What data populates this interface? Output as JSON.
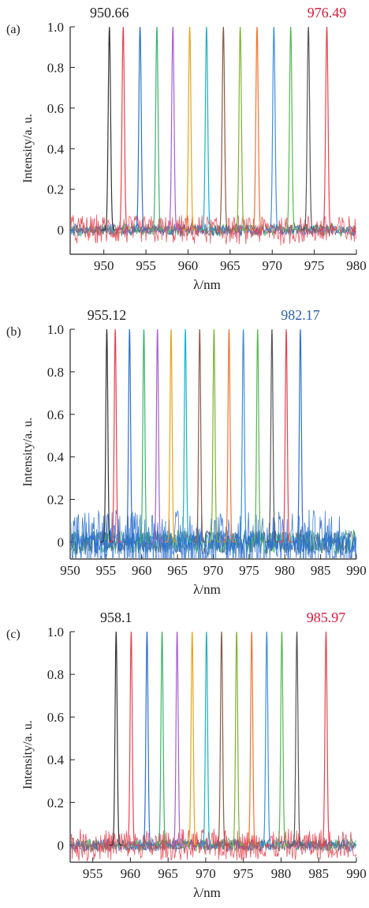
{
  "chart_data": [
    {
      "type": "line",
      "panel_label": "(a)",
      "xlabel": "λ/nm",
      "ylabel": "Intensity/a. u.",
      "xlim": [
        946,
        980
      ],
      "ylim": [
        -0.12,
        1.0
      ],
      "x_ticks": [
        950,
        955,
        960,
        965,
        970,
        975,
        980
      ],
      "y_ticks": [
        0,
        0.2,
        0.4,
        0.6,
        0.8,
        1.0
      ],
      "y_tick_labels": [
        "0",
        "0.2",
        "0.4",
        "0.6",
        "0.8",
        "1.0"
      ],
      "grid": false,
      "noise_color": "#e8414f",
      "annotations": [
        {
          "text": "950.66",
          "x": 950.66,
          "color": "#222222"
        },
        {
          "text": "976.49",
          "x": 976.49,
          "color": "#d6193b"
        }
      ],
      "peaks": [
        {
          "x": 950.66,
          "y": 1.0,
          "color": "#333333"
        },
        {
          "x": 952.3,
          "y": 1.0,
          "color": "#e8414f"
        },
        {
          "x": 954.3,
          "y": 1.0,
          "color": "#2c6fd1"
        },
        {
          "x": 956.3,
          "y": 1.0,
          "color": "#3bb36a"
        },
        {
          "x": 958.2,
          "y": 1.0,
          "color": "#a65fcf"
        },
        {
          "x": 960.2,
          "y": 1.0,
          "color": "#e8a317"
        },
        {
          "x": 962.2,
          "y": 1.0,
          "color": "#17b3c6"
        },
        {
          "x": 964.2,
          "y": 1.0,
          "color": "#8a5a44"
        },
        {
          "x": 966.2,
          "y": 1.0,
          "color": "#7bb32e"
        },
        {
          "x": 968.2,
          "y": 1.0,
          "color": "#f07430"
        },
        {
          "x": 970.2,
          "y": 1.0,
          "color": "#3d8fe0"
        },
        {
          "x": 972.2,
          "y": 1.0,
          "color": "#55b84f"
        },
        {
          "x": 974.3,
          "y": 1.0,
          "color": "#555555"
        },
        {
          "x": 976.49,
          "y": 1.0,
          "color": "#e8414f"
        }
      ]
    },
    {
      "type": "line",
      "panel_label": "(b)",
      "xlabel": "λ/nm",
      "ylabel": "Intensity/a. u.",
      "xlim": [
        950,
        990
      ],
      "ylim": [
        -0.08,
        1.0
      ],
      "x_ticks": [
        950,
        955,
        960,
        965,
        970,
        975,
        980,
        985,
        990
      ],
      "y_ticks": [
        0,
        0.2,
        0.4,
        0.6,
        0.8,
        1.0
      ],
      "y_tick_labels": [
        "0",
        "0.2",
        "0.4",
        "0.6",
        "0.8",
        "1.0"
      ],
      "grid": false,
      "noise_color": "#2c6fd1",
      "annotations": [
        {
          "text": "955.12",
          "x": 955.12,
          "color": "#222222"
        },
        {
          "text": "982.17",
          "x": 982.17,
          "color": "#2a5fa8"
        }
      ],
      "peaks": [
        {
          "x": 955.12,
          "y": 1.0,
          "color": "#333333"
        },
        {
          "x": 956.3,
          "y": 1.0,
          "color": "#e8414f"
        },
        {
          "x": 958.3,
          "y": 1.0,
          "color": "#2c6fd1"
        },
        {
          "x": 960.3,
          "y": 1.0,
          "color": "#3bb36a"
        },
        {
          "x": 962.2,
          "y": 1.0,
          "color": "#a65fcf"
        },
        {
          "x": 964.1,
          "y": 1.0,
          "color": "#e8a317"
        },
        {
          "x": 966.1,
          "y": 1.0,
          "color": "#17b3c6"
        },
        {
          "x": 968.1,
          "y": 1.0,
          "color": "#8a5a44"
        },
        {
          "x": 970.1,
          "y": 1.0,
          "color": "#7bb32e"
        },
        {
          "x": 972.2,
          "y": 1.0,
          "color": "#f07430"
        },
        {
          "x": 974.2,
          "y": 1.0,
          "color": "#3d8fe0"
        },
        {
          "x": 976.2,
          "y": 1.0,
          "color": "#55b84f"
        },
        {
          "x": 978.2,
          "y": 1.0,
          "color": "#555555"
        },
        {
          "x": 980.2,
          "y": 1.0,
          "color": "#e8414f"
        },
        {
          "x": 982.17,
          "y": 1.0,
          "color": "#2c6fd1"
        }
      ]
    },
    {
      "type": "line",
      "panel_label": "(c)",
      "xlabel": "λ/nm",
      "ylabel": "Intensity/a. u.",
      "xlim": [
        952,
        990
      ],
      "ylim": [
        -0.08,
        1.0
      ],
      "x_ticks": [
        955,
        960,
        965,
        970,
        975,
        980,
        985,
        990
      ],
      "y_ticks": [
        0,
        0.2,
        0.4,
        0.6,
        0.8,
        1.0
      ],
      "y_tick_labels": [
        "0",
        "0.2",
        "0.4",
        "0.6",
        "0.8",
        "1.0"
      ],
      "grid": false,
      "noise_color": "#e8414f",
      "annotations": [
        {
          "text": "958.1",
          "x": 958.1,
          "color": "#222222"
        },
        {
          "text": "985.97",
          "x": 985.97,
          "color": "#d6193b"
        }
      ],
      "peaks": [
        {
          "x": 958.1,
          "y": 1.0,
          "color": "#333333"
        },
        {
          "x": 960.1,
          "y": 1.0,
          "color": "#e8414f"
        },
        {
          "x": 962.2,
          "y": 1.0,
          "color": "#2c6fd1"
        },
        {
          "x": 964.2,
          "y": 1.0,
          "color": "#3bb36a"
        },
        {
          "x": 966.2,
          "y": 1.0,
          "color": "#a65fcf"
        },
        {
          "x": 968.2,
          "y": 1.0,
          "color": "#e8a317"
        },
        {
          "x": 970.1,
          "y": 1.0,
          "color": "#17b3c6"
        },
        {
          "x": 972.1,
          "y": 1.0,
          "color": "#8a5a44"
        },
        {
          "x": 974.1,
          "y": 1.0,
          "color": "#7bb32e"
        },
        {
          "x": 976.1,
          "y": 1.0,
          "color": "#f07430"
        },
        {
          "x": 978.1,
          "y": 1.0,
          "color": "#3d8fe0"
        },
        {
          "x": 980.1,
          "y": 1.0,
          "color": "#55b84f"
        },
        {
          "x": 982.1,
          "y": 1.0,
          "color": "#555555"
        },
        {
          "x": 985.97,
          "y": 1.0,
          "color": "#e8414f"
        }
      ]
    }
  ]
}
